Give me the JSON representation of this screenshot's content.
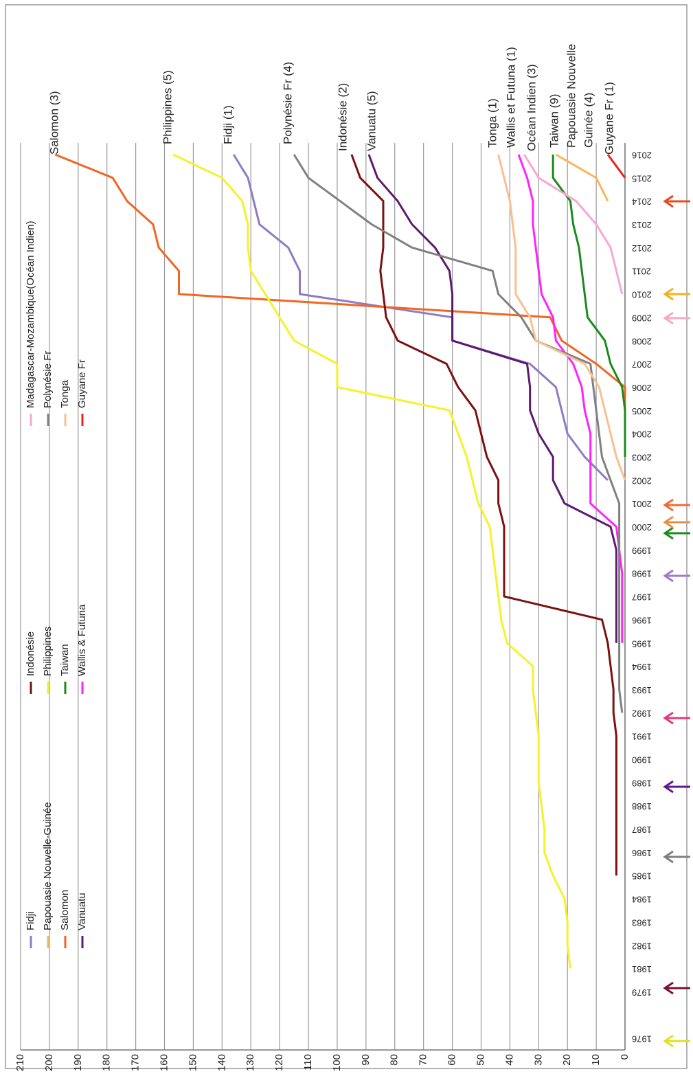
{
  "chart_data": {
    "type": "line",
    "categories": [
      "1976",
      null,
      "1979",
      "1981",
      "1982",
      "1983",
      "1984",
      "1985",
      "1986",
      "1987",
      "1988",
      "1989",
      "1990",
      "1991",
      "1992",
      "1993",
      "1994",
      "1995",
      "1996",
      "1997",
      "1998",
      "1999",
      "2000",
      "2001",
      "2002",
      "2003",
      "2004",
      "2005",
      "2006",
      "2007",
      "2008",
      "2009",
      "2010",
      "2011",
      "2012",
      "2013",
      "2014",
      "2015",
      "2016"
    ],
    "ylim": [
      0,
      210
    ],
    "yticks": [
      0,
      10,
      20,
      30,
      40,
      50,
      60,
      70,
      80,
      90,
      100,
      110,
      120,
      130,
      140,
      150,
      160,
      170,
      180,
      190,
      200,
      210
    ],
    "grid": true,
    "series": [
      {
        "name": "Fidji",
        "color": "#8e7cc3",
        "values": [
          null,
          null,
          null,
          null,
          null,
          null,
          null,
          null,
          null,
          null,
          null,
          null,
          null,
          null,
          null,
          null,
          null,
          null,
          null,
          null,
          null,
          null,
          null,
          null,
          6,
          14,
          20,
          22,
          24,
          33,
          60,
          60,
          113,
          113,
          117,
          127,
          129,
          131,
          136
        ]
      },
      {
        "name": "Papouasie Nouvelle-Guinée",
        "color": "#f9b65a",
        "values": [
          null,
          null,
          null,
          null,
          null,
          null,
          null,
          null,
          null,
          null,
          null,
          null,
          null,
          null,
          null,
          null,
          null,
          null,
          null,
          null,
          null,
          null,
          null,
          null,
          null,
          null,
          null,
          null,
          null,
          null,
          null,
          null,
          null,
          null,
          null,
          null,
          6,
          10,
          24
        ]
      },
      {
        "name": "Salomon",
        "color": "#f26522",
        "values": [
          null,
          null,
          null,
          null,
          null,
          null,
          null,
          null,
          null,
          null,
          null,
          null,
          null,
          null,
          null,
          null,
          null,
          null,
          null,
          null,
          null,
          null,
          null,
          null,
          null,
          0,
          0,
          0,
          0,
          10,
          22,
          26,
          155,
          155,
          162,
          164,
          173,
          178,
          198
        ]
      },
      {
        "name": "Vanuatu",
        "color": "#5c1a6e",
        "values": [
          null,
          null,
          null,
          null,
          null,
          null,
          null,
          null,
          null,
          null,
          null,
          null,
          null,
          null,
          null,
          null,
          null,
          3,
          3,
          3,
          3,
          3,
          5,
          21,
          25,
          25,
          30,
          33,
          33,
          34,
          60,
          60,
          60,
          61,
          66,
          74,
          79,
          86,
          89
        ]
      },
      {
        "name": "Indonésie",
        "color": "#7b1010",
        "values": [
          null,
          null,
          null,
          null,
          null,
          null,
          null,
          3,
          3,
          3,
          3,
          3,
          3,
          3,
          4,
          4,
          5,
          6,
          8,
          42,
          42,
          42,
          42,
          44,
          44,
          48,
          50,
          52,
          58,
          62,
          79,
          83,
          84,
          85,
          84,
          84,
          84,
          92,
          95
        ]
      },
      {
        "name": "Philippines",
        "color": "#f5f22a",
        "values": [
          null,
          null,
          null,
          19,
          20,
          20,
          21,
          25,
          28,
          28,
          29,
          30,
          30,
          30,
          31,
          32,
          32,
          41,
          43,
          44,
          45,
          46,
          47,
          51,
          53,
          55,
          58,
          61,
          100,
          100,
          115,
          120,
          125,
          130,
          131,
          131,
          133,
          140,
          157
        ]
      },
      {
        "name": "Taiwan",
        "color": "#1a8a1a",
        "values": [
          null,
          null,
          null,
          null,
          null,
          null,
          null,
          null,
          null,
          null,
          null,
          null,
          null,
          null,
          null,
          null,
          null,
          null,
          null,
          null,
          null,
          null,
          null,
          null,
          null,
          0,
          0,
          0,
          1,
          5,
          7,
          13,
          14,
          15,
          16,
          18,
          19,
          25,
          25
        ]
      },
      {
        "name": "Wallis & Futuna",
        "color": "#ff22ff",
        "values": [
          null,
          null,
          null,
          null,
          null,
          null,
          null,
          null,
          null,
          null,
          null,
          null,
          null,
          null,
          null,
          null,
          null,
          1,
          1,
          1,
          1,
          2,
          3,
          12,
          12,
          12,
          12,
          14,
          15,
          18,
          24,
          25,
          29,
          30,
          31,
          32,
          32,
          34,
          37
        ]
      },
      {
        "name": "Madagascar-Mozambique(Océan Indien)",
        "color": "#f9a6d6",
        "values": [
          null,
          null,
          null,
          null,
          null,
          null,
          null,
          null,
          null,
          null,
          null,
          null,
          null,
          null,
          null,
          null,
          null,
          null,
          null,
          null,
          null,
          null,
          null,
          null,
          null,
          null,
          null,
          null,
          null,
          null,
          null,
          null,
          1,
          3,
          5,
          10,
          17,
          30,
          35
        ]
      },
      {
        "name": "Polynésie Fr",
        "color": "#808080",
        "values": [
          null,
          null,
          null,
          null,
          null,
          null,
          null,
          null,
          null,
          null,
          null,
          null,
          null,
          null,
          1,
          2,
          2,
          2,
          2,
          2,
          2,
          2,
          2,
          2,
          5,
          8,
          9,
          10,
          11,
          12,
          31,
          36,
          44,
          46,
          74,
          88,
          99,
          110,
          115
        ]
      },
      {
        "name": "Tonga",
        "color": "#f9c08f",
        "values": [
          null,
          null,
          null,
          null,
          null,
          null,
          null,
          null,
          null,
          null,
          null,
          null,
          null,
          null,
          null,
          null,
          null,
          null,
          null,
          null,
          null,
          null,
          null,
          null,
          0,
          3,
          5,
          7,
          9,
          14,
          31,
          33,
          38,
          38,
          38,
          39,
          40,
          42,
          44
        ]
      },
      {
        "name": "Guyane Fr",
        "color": "#e8251b",
        "values": [
          null,
          null,
          null,
          null,
          null,
          null,
          null,
          null,
          null,
          null,
          null,
          null,
          null,
          null,
          null,
          null,
          null,
          null,
          null,
          null,
          null,
          null,
          null,
          null,
          null,
          null,
          null,
          null,
          null,
          null,
          null,
          null,
          null,
          null,
          null,
          null,
          null,
          0,
          6
        ]
      }
    ],
    "annotations": [
      "Salomon (3)",
      "Philippines (5)",
      "Fidji (1)",
      "Polynésie Fr (4)",
      "Indonésie (2)",
      "Vanuatu (5)",
      "Tonga (1)",
      "Wallis et Futuna (1)",
      "Océan Indien (3)",
      "Taiwan (9)",
      "Papouasie Nouvelle",
      "Guinée (4)",
      "Guyane Fr (1)"
    ]
  }
}
